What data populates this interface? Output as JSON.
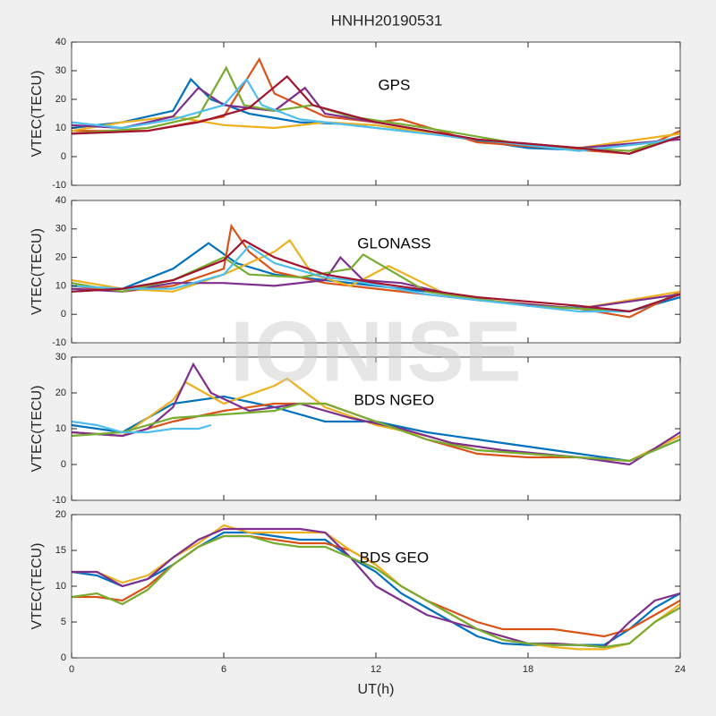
{
  "title": "HNHH20190531",
  "watermark": "IONISE",
  "chart_data": [
    {
      "type": "line",
      "annotation": "GPS",
      "ylabel": "VTEC(TECU)",
      "xlim": [
        0,
        24
      ],
      "xticks": [
        0,
        6,
        12,
        18,
        24
      ],
      "ylim": [
        -10,
        40
      ],
      "yticks": [
        -10,
        0,
        10,
        20,
        30,
        40
      ],
      "series": [
        {
          "color": "#0072bd",
          "x": [
            0,
            2,
            4,
            4.7,
            5.5,
            7,
            9,
            12,
            15,
            18,
            21,
            22,
            24
          ],
          "values": [
            10,
            12,
            16,
            27,
            20,
            15,
            12,
            11,
            7,
            3,
            2,
            1,
            7
          ]
        },
        {
          "color": "#d95319",
          "x": [
            0,
            3,
            6,
            7.4,
            8,
            10,
            12,
            13,
            16,
            19,
            22,
            24
          ],
          "values": [
            9,
            9,
            14,
            34,
            22,
            14,
            12,
            13,
            5,
            3,
            1,
            9
          ]
        },
        {
          "color": "#edb120",
          "x": [
            0,
            2,
            4,
            6,
            8,
            10,
            12,
            16,
            20,
            24
          ],
          "values": [
            9,
            12,
            14,
            11,
            10,
            12,
            11,
            6,
            3,
            8
          ]
        },
        {
          "color": "#7e2f8e",
          "x": [
            0,
            2,
            4,
            5,
            6,
            8,
            9.2,
            10,
            12,
            16,
            20,
            24
          ],
          "values": [
            11,
            10,
            14,
            24,
            18,
            16,
            24,
            15,
            12,
            6,
            3,
            6
          ]
        },
        {
          "color": "#77ac30",
          "x": [
            0,
            3,
            5,
            6.1,
            6.8,
            8,
            9.5,
            11,
            14,
            18,
            22,
            24
          ],
          "values": [
            8,
            10,
            14,
            31,
            18,
            16,
            18,
            14,
            10,
            4,
            2,
            7
          ]
        },
        {
          "color": "#4dbeee",
          "x": [
            0,
            2,
            4,
            6,
            6.9,
            7.5,
            9,
            12,
            16,
            20,
            23,
            24
          ],
          "values": [
            12,
            10,
            13,
            18,
            27,
            18,
            13,
            10,
            6,
            2,
            5,
            7
          ]
        },
        {
          "color": "#a2142f",
          "x": [
            0,
            3,
            5,
            7,
            8.5,
            9.5,
            12,
            16,
            20,
            22,
            24
          ],
          "values": [
            8,
            9,
            12,
            17,
            28,
            18,
            12,
            6,
            3,
            1,
            7
          ]
        }
      ]
    },
    {
      "type": "line",
      "annotation": "GLONASS",
      "ylabel": "VTEC(TECU)",
      "xlim": [
        0,
        24
      ],
      "xticks": [
        0,
        6,
        12,
        18,
        24
      ],
      "ylim": [
        -10,
        40
      ],
      "yticks": [
        -10,
        0,
        10,
        20,
        30,
        40
      ],
      "series": [
        {
          "color": "#0072bd",
          "x": [
            0,
            2,
            4,
            5.4,
            6.5,
            8,
            10,
            12,
            14,
            18,
            21,
            22,
            24
          ],
          "values": [
            8,
            9,
            16,
            25,
            18,
            14,
            12,
            10,
            8,
            3,
            2,
            1,
            6
          ]
        },
        {
          "color": "#d95319",
          "x": [
            0,
            2,
            4,
            6,
            6.3,
            7,
            8,
            10,
            12,
            16,
            20,
            22,
            24
          ],
          "values": [
            10,
            8,
            10,
            16,
            31,
            22,
            15,
            11,
            9,
            5,
            2,
            -1,
            8
          ]
        },
        {
          "color": "#edb120",
          "x": [
            0,
            2,
            4,
            6,
            8,
            8.6,
            9.5,
            11,
            12.5,
            15,
            20,
            24
          ],
          "values": [
            12,
            9,
            8,
            14,
            22,
            26,
            14,
            10,
            17,
            6,
            2,
            8
          ]
        },
        {
          "color": "#7e2f8e",
          "x": [
            0,
            2,
            4,
            6,
            8,
            10,
            10.6,
            11.5,
            13,
            16,
            20,
            24
          ],
          "values": [
            9,
            8,
            11,
            11,
            10,
            12,
            20,
            12,
            11,
            5,
            2,
            7
          ]
        },
        {
          "color": "#77ac30",
          "x": [
            0,
            2,
            4,
            5,
            6,
            7,
            9,
            11,
            11.5,
            14,
            18,
            22,
            24
          ],
          "values": [
            11,
            8,
            12,
            16,
            20,
            14,
            13,
            16,
            21,
            8,
            3,
            1,
            7
          ]
        },
        {
          "color": "#4dbeee",
          "x": [
            0,
            2,
            4,
            6,
            7,
            8,
            10,
            11,
            14,
            18,
            20,
            22,
            24
          ],
          "values": [
            10,
            9,
            9,
            14,
            24,
            18,
            13,
            12,
            7,
            3,
            1,
            1,
            7
          ]
        },
        {
          "color": "#a2142f",
          "x": [
            0,
            2,
            4,
            6,
            6.8,
            8,
            10,
            12,
            16,
            20,
            22,
            24
          ],
          "values": [
            8,
            9,
            12,
            19,
            26,
            20,
            14,
            11,
            6,
            3,
            1,
            7
          ]
        }
      ]
    },
    {
      "type": "line",
      "annotation": "BDS NGEO",
      "ylabel": "VTEC(TECU)",
      "xlim": [
        0,
        24
      ],
      "xticks": [
        0,
        6,
        12,
        18,
        24
      ],
      "ylim": [
        -10,
        30
      ],
      "yticks": [
        -10,
        0,
        10,
        20,
        30
      ],
      "series": [
        {
          "color": "#0072bd",
          "x": [
            0,
            2,
            4,
            6,
            8,
            10,
            12,
            14,
            16,
            18,
            20,
            22,
            24
          ],
          "values": [
            11,
            9,
            17,
            19,
            16,
            12,
            12,
            9,
            7,
            5,
            3,
            1,
            7
          ]
        },
        {
          "color": "#d95319",
          "x": [
            0,
            2,
            4,
            6,
            8,
            10,
            12,
            14,
            16,
            18,
            20,
            22,
            24
          ],
          "values": [
            9,
            8,
            12,
            15,
            17,
            17,
            12,
            7,
            3,
            2,
            2,
            1,
            8
          ]
        },
        {
          "color": "#edb120",
          "x": [
            0,
            2,
            4,
            4.5,
            6,
            8,
            8.5,
            10,
            12,
            14,
            16,
            18,
            20,
            22,
            24
          ],
          "values": [
            9,
            8,
            18,
            23,
            17,
            22,
            24,
            16,
            11,
            8,
            4,
            3,
            2,
            1,
            8
          ]
        },
        {
          "color": "#7e2f8e",
          "x": [
            0,
            2,
            3,
            4,
            4.8,
            5.5,
            7,
            9,
            11,
            13,
            15,
            17,
            20,
            22,
            24
          ],
          "values": [
            9,
            8,
            10,
            16,
            28,
            20,
            15,
            17,
            13,
            10,
            6,
            4,
            2,
            0,
            9
          ]
        },
        {
          "color": "#77ac30",
          "x": [
            0,
            2,
            4,
            6,
            8,
            9,
            10,
            12,
            14,
            16,
            18,
            20,
            22,
            24
          ],
          "values": [
            8,
            9,
            13,
            14,
            15,
            17,
            17,
            12,
            7,
            4,
            3,
            2,
            1,
            7
          ]
        },
        {
          "color": "#4dbeee",
          "x": [
            0,
            1,
            2,
            3,
            4,
            5,
            5.5
          ],
          "values": [
            12,
            11,
            9,
            9,
            10,
            10,
            11
          ]
        }
      ]
    },
    {
      "type": "line",
      "annotation": "BDS GEO",
      "ylabel": "VTEC(TECU)",
      "xlabel": "UT(h)",
      "xlim": [
        0,
        24
      ],
      "xticks": [
        0,
        6,
        12,
        18,
        24
      ],
      "ylim": [
        0,
        20
      ],
      "yticks": [
        0,
        5,
        10,
        15,
        20
      ],
      "series": [
        {
          "color": "#0072bd",
          "x": [
            0,
            1,
            2,
            3,
            4,
            5,
            6,
            7,
            8,
            9,
            10,
            11,
            12,
            13,
            14,
            15,
            16,
            17,
            18,
            19,
            20,
            21,
            22,
            23,
            24
          ],
          "values": [
            12,
            11.5,
            10,
            11,
            13,
            15.5,
            17.5,
            17.5,
            17,
            16.5,
            16.5,
            14,
            12,
            9,
            7,
            5,
            3,
            2,
            1.8,
            1.8,
            1.8,
            1.8,
            4,
            7,
            9
          ]
        },
        {
          "color": "#d95319",
          "x": [
            0,
            1,
            2,
            3,
            4,
            5,
            6,
            7,
            8,
            9,
            10,
            11,
            12,
            13,
            14,
            15,
            16,
            17,
            18,
            19,
            20,
            21,
            22,
            23,
            24
          ],
          "values": [
            8.5,
            8.5,
            8,
            10,
            13,
            15.5,
            17,
            17,
            16.5,
            16,
            16,
            15,
            13,
            10,
            8,
            6.5,
            5,
            4,
            4,
            4,
            3.5,
            3,
            4,
            6,
            8
          ]
        },
        {
          "color": "#edb120",
          "x": [
            0,
            1,
            2,
            3,
            4,
            5,
            6,
            7,
            8,
            9,
            10,
            11,
            12,
            13,
            14,
            15,
            16,
            17,
            18,
            19,
            20,
            21,
            22,
            23,
            24
          ],
          "values": [
            12,
            12,
            10.5,
            11.5,
            14,
            16,
            18.5,
            17.5,
            17.5,
            17.5,
            17.5,
            15,
            13,
            10,
            8,
            6,
            4,
            3,
            2,
            1.5,
            1.2,
            1.2,
            2,
            5,
            7.5
          ]
        },
        {
          "color": "#7e2f8e",
          "x": [
            0,
            1,
            2,
            3,
            4,
            5,
            6,
            7,
            8,
            9,
            10,
            11,
            12,
            13,
            14,
            15,
            16,
            17,
            18,
            19,
            20,
            21,
            22,
            23,
            24
          ],
          "values": [
            12,
            12,
            10,
            11,
            14,
            16.5,
            18,
            18,
            18,
            18,
            17.5,
            14,
            10,
            8,
            6,
            5,
            4,
            3,
            2,
            2,
            1.8,
            1.5,
            5,
            8,
            9
          ]
        },
        {
          "color": "#77ac30",
          "x": [
            0,
            1,
            2,
            3,
            4,
            5,
            6,
            7,
            8,
            9,
            10,
            11,
            12,
            13,
            14,
            15,
            16,
            17,
            18,
            19,
            20,
            21,
            22,
            23,
            24
          ],
          "values": [
            8.5,
            9,
            7.5,
            9.5,
            13,
            15.5,
            17,
            17,
            16,
            15.5,
            15.5,
            14,
            12.5,
            10,
            8,
            6,
            4,
            2.5,
            2,
            1.8,
            1.8,
            1.5,
            2,
            5,
            7
          ]
        }
      ]
    }
  ]
}
